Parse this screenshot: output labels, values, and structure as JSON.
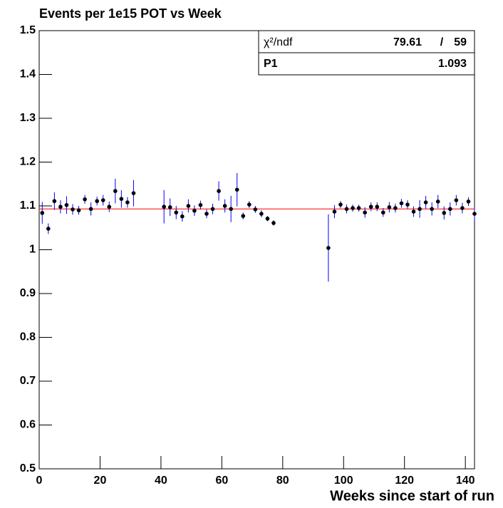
{
  "chart_data": {
    "type": "errorbar",
    "title": "Events per 1e15 POT vs Week",
    "x_label": "Weeks since start of run",
    "x": [
      1,
      3,
      5,
      7,
      9,
      11,
      13,
      15,
      17,
      19,
      21,
      23,
      25,
      27,
      29,
      31,
      41,
      43,
      45,
      47,
      49,
      51,
      53,
      55,
      57,
      59,
      61,
      63,
      65,
      67,
      69,
      71,
      73,
      75,
      77,
      95,
      97,
      99,
      101,
      103,
      105,
      107,
      109,
      111,
      113,
      115,
      117,
      119,
      121,
      123,
      125,
      127,
      129,
      131,
      133,
      135,
      137,
      139,
      141,
      143
    ],
    "values": [
      1.084,
      1.048,
      1.111,
      1.098,
      1.102,
      1.092,
      1.09,
      1.115,
      1.093,
      1.111,
      1.113,
      1.098,
      1.134,
      1.116,
      1.108,
      1.129,
      1.098,
      1.097,
      1.085,
      1.076,
      1.1,
      1.089,
      1.102,
      1.082,
      1.093,
      1.134,
      1.1,
      1.093,
      1.137,
      1.077,
      1.103,
      1.092,
      1.082,
      1.071,
      1.061,
      1.004,
      1.087,
      1.103,
      1.093,
      1.095,
      1.095,
      1.085,
      1.098,
      1.098,
      1.085,
      1.097,
      1.095,
      1.106,
      1.103,
      1.087,
      1.093,
      1.108,
      1.093,
      1.11,
      1.084,
      1.093,
      1.113,
      1.095,
      1.11,
      1.082
    ],
    "errors": [
      0.025,
      0.012,
      0.02,
      0.015,
      0.02,
      0.012,
      0.01,
      0.01,
      0.015,
      0.01,
      0.012,
      0.012,
      0.028,
      0.02,
      0.012,
      0.03,
      0.038,
      0.02,
      0.015,
      0.012,
      0.015,
      0.012,
      0.01,
      0.01,
      0.012,
      0.022,
      0.015,
      0.03,
      0.038,
      0.008,
      0.008,
      0.008,
      0.008,
      0.006,
      0.006,
      0.077,
      0.015,
      0.008,
      0.01,
      0.008,
      0.008,
      0.012,
      0.01,
      0.01,
      0.01,
      0.012,
      0.01,
      0.01,
      0.01,
      0.012,
      0.02,
      0.015,
      0.015,
      0.015,
      0.015,
      0.015,
      0.012,
      0.012,
      0.01,
      0.015
    ],
    "marker_color": "#000000",
    "error_color": "#0000ff",
    "fit_color": "#ff0000",
    "xlim": [
      0,
      143
    ],
    "ylim": [
      0.5,
      1.5
    ],
    "xticks": [
      0,
      20,
      40,
      60,
      80,
      100,
      120,
      140
    ],
    "yticks": [
      0.5,
      0.6,
      0.7,
      0.8,
      0.9,
      1,
      1.1,
      1.2,
      1.3,
      1.4,
      1.5
    ],
    "stats": {
      "chi2_label": "χ²/ndf",
      "chi2": 79.61,
      "separator": "/",
      "ndf": 59,
      "p1_label": "P1",
      "p1": 1.093
    }
  }
}
